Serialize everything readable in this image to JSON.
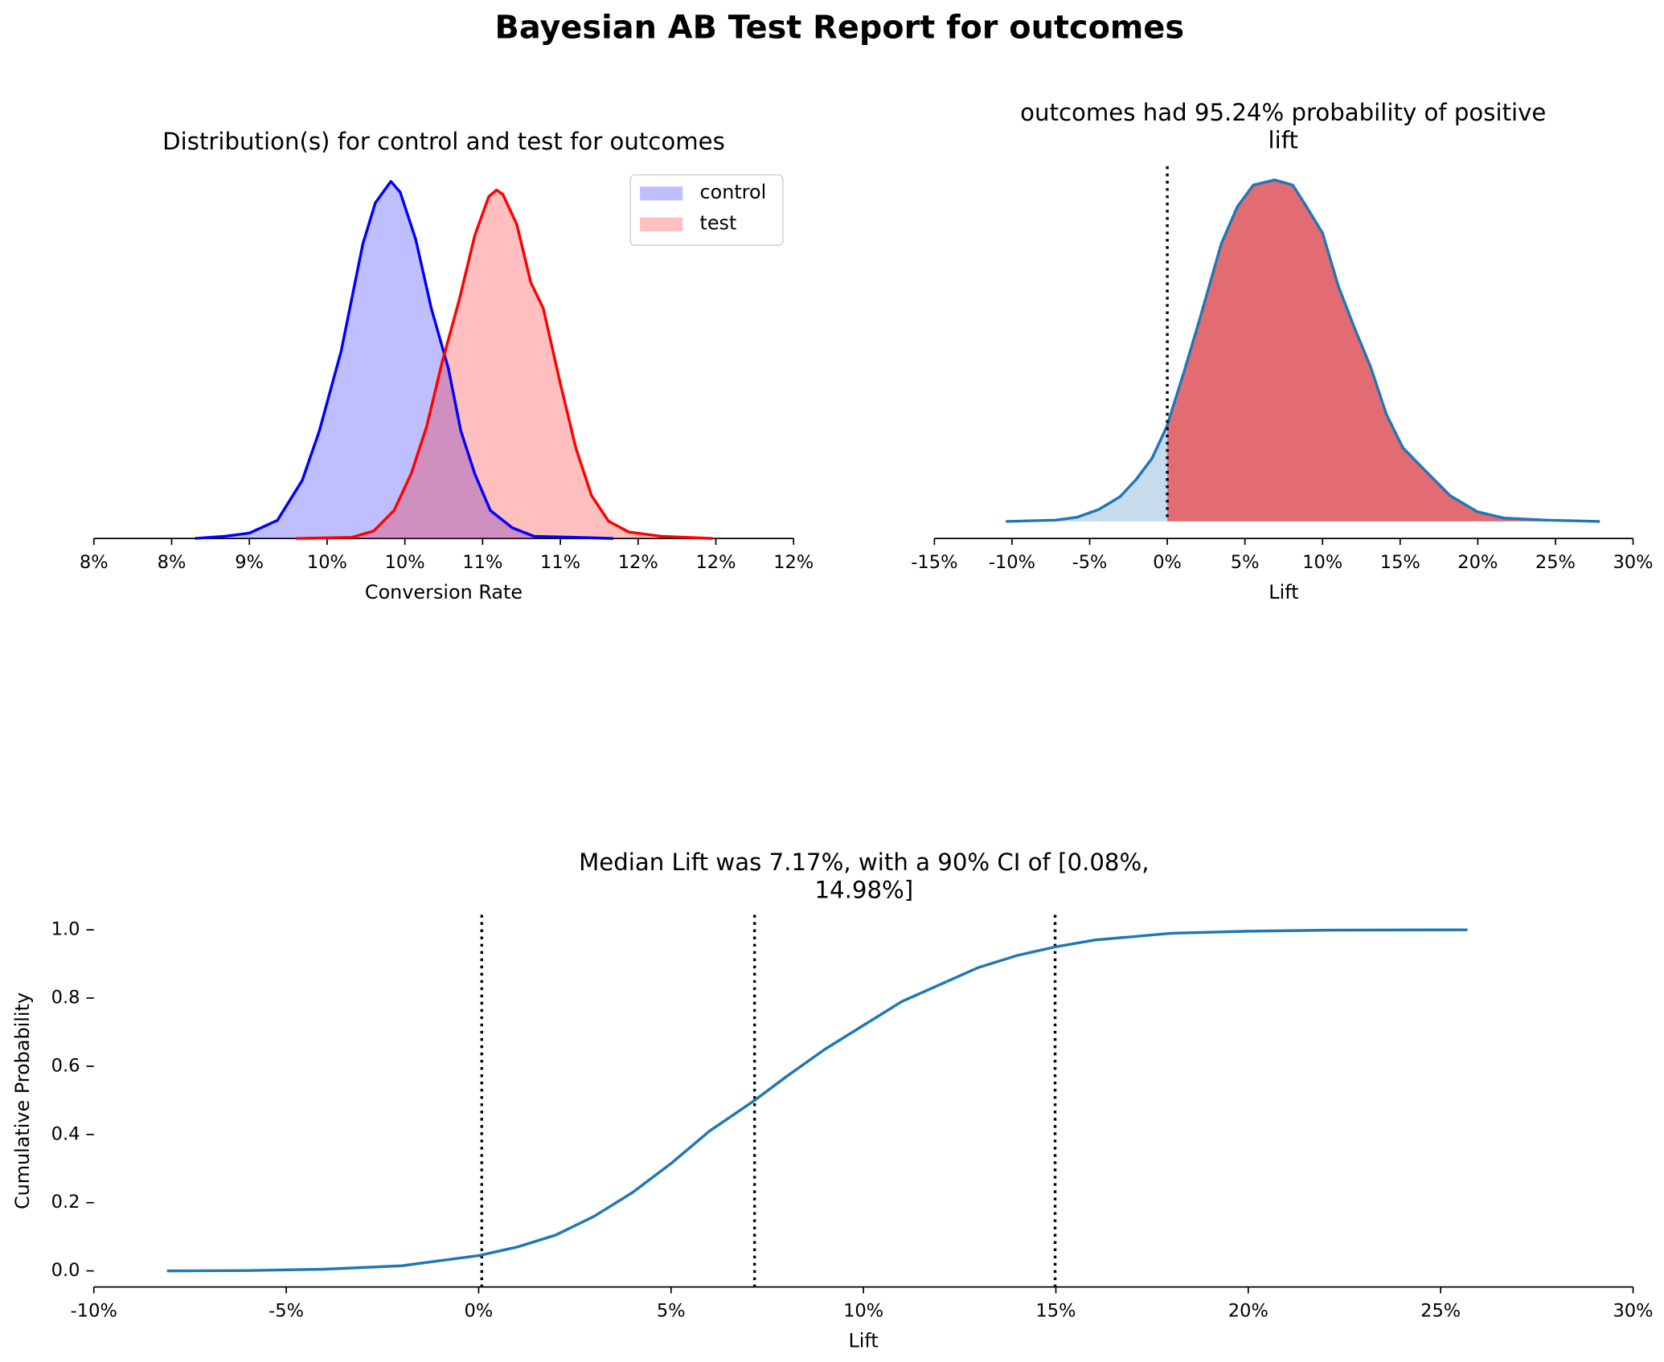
{
  "title": "Bayesian AB Test Report for outcomes",
  "chart_data": [
    {
      "type": "density",
      "title": "Distribution(s) for control and test for outcomes",
      "xlabel": "Conversion Rate",
      "xlim": [
        8,
        12.5
      ],
      "xticks": [
        {
          "value": 8,
          "label": "8%"
        },
        {
          "value": 8.5,
          "label": "8%"
        },
        {
          "value": 9,
          "label": "9%"
        },
        {
          "value": 9.5,
          "label": "10%"
        },
        {
          "value": 10,
          "label": "10%"
        },
        {
          "value": 10.5,
          "label": "11%"
        },
        {
          "value": 11,
          "label": "11%"
        },
        {
          "value": 11.5,
          "label": "12%"
        },
        {
          "value": 12,
          "label": "12%"
        },
        {
          "value": 12.5,
          "label": "12%"
        }
      ],
      "ylim": [
        0,
        1.75
      ],
      "legend": "upper right",
      "fill_opacity": 0.25,
      "series": [
        {
          "name": "control",
          "color": "blue",
          "x": [
            8.65,
            8.84,
            9.0,
            9.18,
            9.34,
            9.45,
            9.59,
            9.73,
            9.81,
            9.91,
            9.97,
            10.07,
            10.17,
            10.28,
            10.36,
            10.45,
            10.55,
            10.69,
            10.83,
            11.1,
            11.34
          ],
          "values": [
            0,
            0.01,
            0.025,
            0.084,
            0.27,
            0.5,
            0.87,
            1.37,
            1.56,
            1.66,
            1.61,
            1.39,
            1.07,
            0.79,
            0.5,
            0.3,
            0.13,
            0.05,
            0.01,
            0.005,
            0
          ]
        },
        {
          "name": "test",
          "color": "red",
          "x": [
            9.3,
            9.66,
            9.8,
            9.93,
            10.04,
            10.14,
            10.24,
            10.35,
            10.45,
            10.54,
            10.59,
            10.63,
            10.72,
            10.81,
            10.89,
            11.0,
            11.1,
            11.2,
            11.31,
            11.44,
            11.65,
            11.98
          ],
          "values": [
            0,
            0.005,
            0.035,
            0.13,
            0.3,
            0.52,
            0.82,
            1.11,
            1.41,
            1.59,
            1.62,
            1.6,
            1.46,
            1.19,
            1.07,
            0.72,
            0.42,
            0.2,
            0.08,
            0.03,
            0.01,
            0
          ]
        }
      ]
    },
    {
      "type": "lift_density",
      "title": [
        "outcomes had 95.24% probability of positive",
        "lift"
      ],
      "xlabel": "Lift",
      "xlim": [
        -15,
        30
      ],
      "xticks": [
        {
          "value": -15,
          "label": "-15%"
        },
        {
          "value": -10,
          "label": "-10%"
        },
        {
          "value": -5,
          "label": "-5%"
        },
        {
          "value": 0,
          "label": "0%"
        },
        {
          "value": 5,
          "label": "5%"
        },
        {
          "value": 10,
          "label": "10%"
        },
        {
          "value": 15,
          "label": "15%"
        },
        {
          "value": 20,
          "label": "20%"
        },
        {
          "value": 25,
          "label": "25%"
        },
        {
          "value": 30,
          "label": "30%"
        }
      ],
      "ylim": [
        -0.004,
        0.0845
      ],
      "vlines": [
        0
      ],
      "color": "#1f77b4",
      "below_color": "#c6dcec",
      "above_color": "#e36c73",
      "x": [
        -10.4,
        -7.17,
        -5.8,
        -4.42,
        -3.05,
        -2.02,
        -0.99,
        -0.03,
        1.07,
        2.1,
        3.48,
        4.51,
        5.54,
        6.91,
        8.08,
        8.97,
        10.0,
        11.03,
        12.09,
        13.09,
        14.12,
        15.18,
        16.52,
        18.24,
        19.96,
        21.68,
        24.42,
        27.86
      ],
      "values": [
        0,
        0.0003,
        0.001,
        0.0028,
        0.0058,
        0.0098,
        0.0148,
        0.0223,
        0.0351,
        0.0477,
        0.0653,
        0.074,
        0.0791,
        0.0803,
        0.0791,
        0.074,
        0.0678,
        0.0552,
        0.0452,
        0.0364,
        0.0251,
        0.0173,
        0.0123,
        0.006,
        0.0023,
        0.0008,
        0.0003,
        0
      ]
    },
    {
      "type": "cdf",
      "title": [
        "Median Lift was 7.17%, with a 90% CI of [0.08%,",
        "14.98%]"
      ],
      "xlabel": "Lift",
      "ylabel": "Cumulative Probability",
      "xlim": [
        -10,
        30
      ],
      "xticks": [
        {
          "value": -10,
          "label": "-10%"
        },
        {
          "value": -5,
          "label": "-5%"
        },
        {
          "value": 0,
          "label": "0%"
        },
        {
          "value": 5,
          "label": "5%"
        },
        {
          "value": 10,
          "label": "10%"
        },
        {
          "value": 15,
          "label": "15%"
        },
        {
          "value": 20,
          "label": "20%"
        },
        {
          "value": 25,
          "label": "25%"
        },
        {
          "value": 30,
          "label": "30%"
        }
      ],
      "ylim": [
        -0.047,
        1.044
      ],
      "yticks": [
        {
          "value": 0,
          "label": "0.0"
        },
        {
          "value": 0.2,
          "label": "0.2"
        },
        {
          "value": 0.4,
          "label": "0.4"
        },
        {
          "value": 0.6,
          "label": "0.6"
        },
        {
          "value": 0.8,
          "label": "0.8"
        },
        {
          "value": 1,
          "label": "1.0"
        }
      ],
      "vlines": [
        0.08,
        7.17,
        14.98
      ],
      "color": "#1f77b4",
      "x": [
        -8.1,
        -6,
        -4,
        -2,
        0,
        1,
        2,
        3,
        4,
        5,
        6,
        7.17,
        8,
        9,
        10,
        11,
        12,
        13,
        14,
        14.98,
        16,
        17,
        18,
        20,
        22,
        25.7
      ],
      "values": [
        0,
        0.001,
        0.005,
        0.015,
        0.045,
        0.07,
        0.105,
        0.16,
        0.23,
        0.315,
        0.41,
        0.5,
        0.57,
        0.65,
        0.72,
        0.79,
        0.84,
        0.89,
        0.925,
        0.95,
        0.97,
        0.98,
        0.99,
        0.996,
        0.999,
        1.0
      ]
    }
  ]
}
